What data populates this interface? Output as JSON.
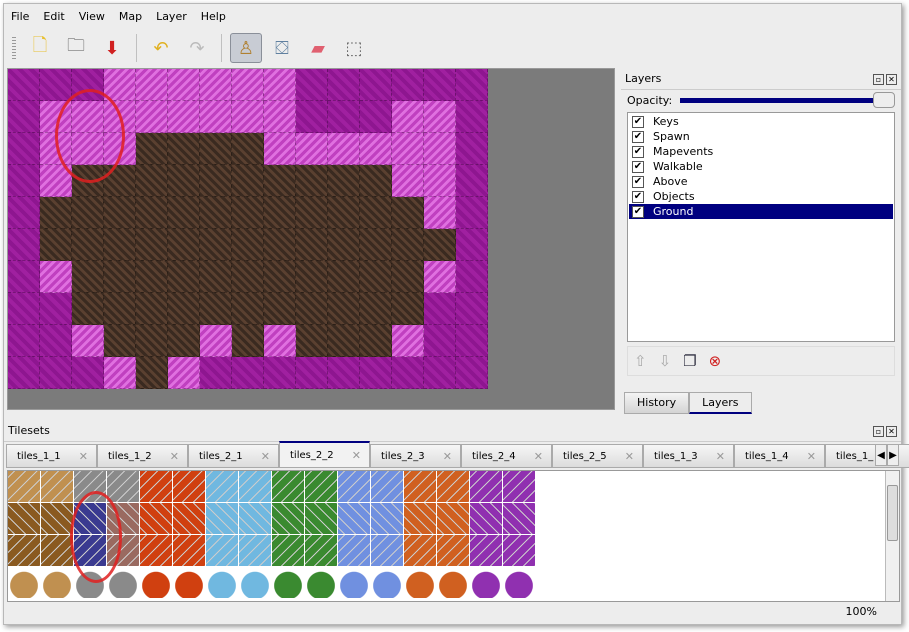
{
  "menu": [
    "File",
    "Edit",
    "View",
    "Map",
    "Layer",
    "Help"
  ],
  "toolbar": [
    {
      "name": "new-file-icon",
      "glyph": "🗋"
    },
    {
      "name": "open-folder-icon",
      "glyph": "🗀"
    },
    {
      "name": "save-icon",
      "glyph": "⬇"
    },
    {
      "sep": true
    },
    {
      "name": "undo-icon",
      "glyph": "↶"
    },
    {
      "name": "redo-icon",
      "glyph": "↷"
    },
    {
      "sep": true
    },
    {
      "name": "stamp-brush-icon",
      "glyph": "♙",
      "active": true
    },
    {
      "name": "bucket-fill-icon",
      "glyph": "⛋"
    },
    {
      "name": "eraser-icon",
      "glyph": "▰"
    },
    {
      "name": "rect-select-icon",
      "glyph": "⬚"
    }
  ],
  "map": {
    "rows": [
      "pppllllllpppppp",
      "pllllllllpppllp",
      "plllbbbbllllllp",
      "plbbbbbbbbbbllp",
      "pbbbbbbbbbbbblp",
      "pbbbbbbbbbbbbbp",
      "plbbbbbbbbbbblp",
      "ppbbbbbbbbbbbpp",
      "pplbbblblbbblpp",
      "ppplblppppppppp"
    ]
  },
  "layers": {
    "title": "Layers",
    "opacity_label": "Opacity:",
    "opacity": 100,
    "items": [
      {
        "label": "Keys",
        "checked": true
      },
      {
        "label": "Spawn",
        "checked": true
      },
      {
        "label": "Mapevents",
        "checked": true
      },
      {
        "label": "Walkable",
        "checked": true
      },
      {
        "label": "Above",
        "checked": true
      },
      {
        "label": "Objects",
        "checked": true
      },
      {
        "label": "Ground",
        "checked": true,
        "selected": true
      }
    ],
    "buttons": [
      "raise-layer-icon",
      "lower-layer-icon",
      "duplicate-layer-icon",
      "remove-layer-icon"
    ]
  },
  "dock_tabs": [
    {
      "label": "History"
    },
    {
      "label": "Layers",
      "active": true
    }
  ],
  "tilesets": {
    "title": "Tilesets",
    "tabs": [
      "tiles_1_1",
      "tiles_1_2",
      "tiles_2_1",
      "tiles_2_2",
      "tiles_2_3",
      "tiles_2_4",
      "tiles_2_5",
      "tiles_1_3",
      "tiles_1_4",
      "tiles_1_"
    ],
    "active_tab": "tiles_2_2",
    "palette": [
      "#c09050",
      "#8a8a8a",
      "#d04010",
      "#70b8e0",
      "#3a8a30",
      "#7090e0",
      "#d06020",
      "#9030b0"
    ]
  },
  "status": {
    "zoom": "100%"
  }
}
